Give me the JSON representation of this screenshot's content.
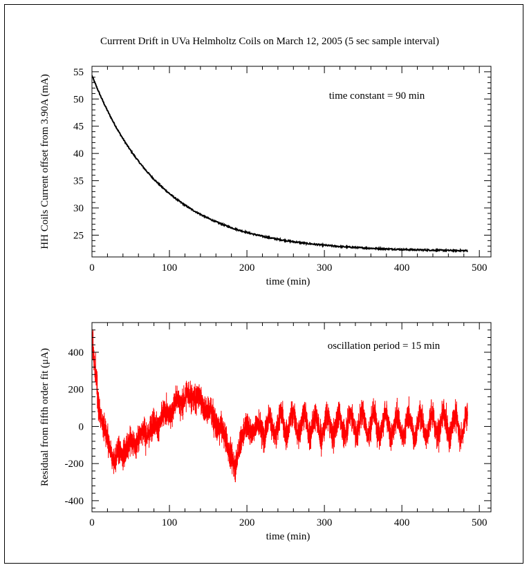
{
  "figure_title": "Currrent Drift in UVa Helmholtz Coils on March 12, 2005 (5 sec sample interval)",
  "chart_data": [
    {
      "type": "line",
      "xlabel": "time (min)",
      "ylabel": "HH Coils Current offset from 3.90A (mA)",
      "xlim": [
        0,
        515
      ],
      "ylim": [
        21,
        56
      ],
      "xticks": [
        0,
        100,
        200,
        300,
        400,
        500
      ],
      "yticks": [
        25,
        30,
        35,
        40,
        45,
        50,
        55
      ],
      "annotation": "time constant = 90 min",
      "grid": false,
      "series": [
        {
          "color": "#000000",
          "model": {
            "offset": 22.0,
            "amplitude": 32.3,
            "time_constant": 90,
            "t_start": 0,
            "t_end": 485
          },
          "x": [
            0,
            50,
            100,
            150,
            200,
            250,
            300,
            350,
            400,
            450,
            485
          ],
          "y": [
            54.3,
            40.4,
            35.9,
            31.0,
            28.3,
            26.3,
            25.0,
            24.1,
            23.5,
            23.0,
            22.7
          ]
        }
      ]
    },
    {
      "type": "line",
      "xlabel": "time (min)",
      "ylabel": "Residual from fifth order fit (μA)",
      "xlim": [
        0,
        515
      ],
      "ylim": [
        -460,
        560
      ],
      "xticks": [
        0,
        100,
        200,
        300,
        400,
        500
      ],
      "yticks": [
        -400,
        -200,
        0,
        200,
        400
      ],
      "annotation": "oscillation period = 15 min",
      "grid": false,
      "series": [
        {
          "color": "#ff0000",
          "sample_interval_min": 0.0833,
          "t_range": [
            0,
            485
          ],
          "oscillation_period_min": 15,
          "envelope_x": [
            0,
            2,
            5,
            10,
            20,
            30,
            40,
            60,
            80,
            100,
            115,
            130,
            145,
            160,
            175,
            185,
            190,
            200,
            230,
            260,
            300,
            350,
            400,
            450,
            485
          ],
          "envelope_y": [
            500,
            380,
            250,
            100,
            -100,
            -180,
            -130,
            -60,
            0,
            80,
            140,
            170,
            120,
            20,
            -80,
            -250,
            -80,
            -10,
            0,
            20,
            0,
            20,
            0,
            10,
            0
          ]
        }
      ]
    }
  ]
}
